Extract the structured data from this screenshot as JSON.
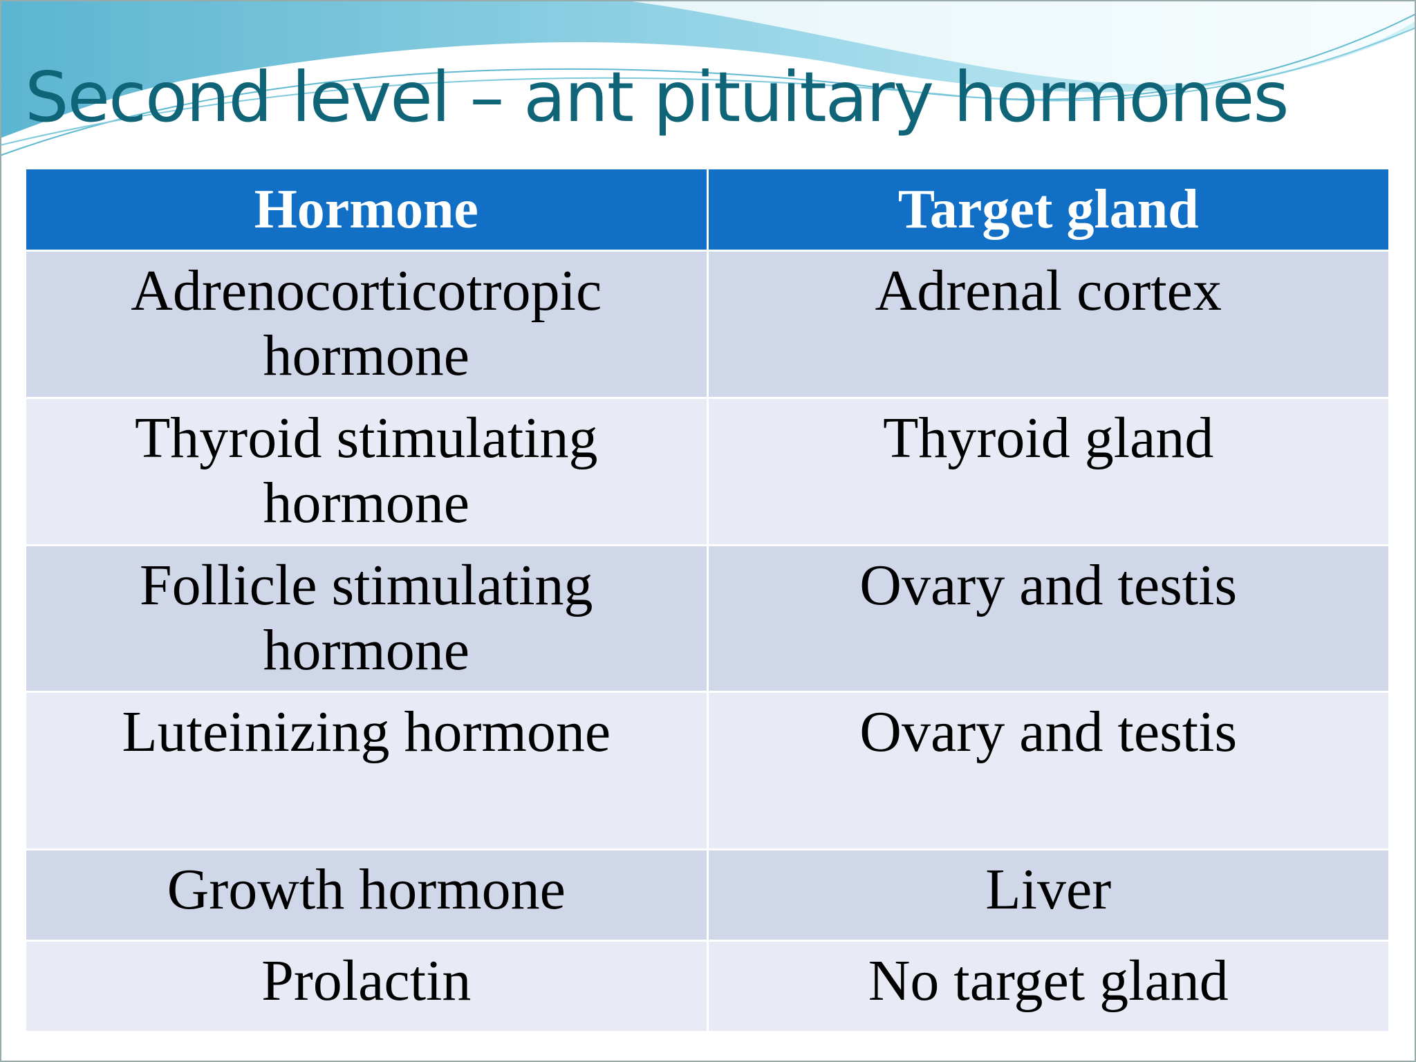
{
  "header": {
    "title": "Second level – ant pituitary hormones"
  },
  "table": {
    "columns": [
      "Hormone",
      "Target gland"
    ],
    "rows": [
      [
        "Adrenocorticotropic hormone",
        "Adrenal cortex"
      ],
      [
        "Thyroid stimulating hormone",
        "Thyroid gland"
      ],
      [
        "Follicle stimulating hormone",
        "Ovary and testis"
      ],
      [
        "Luteinizing hormone",
        "Ovary and testis"
      ],
      [
        "Growth hormone",
        "Liver"
      ],
      [
        "Prolactin",
        "No target gland"
      ]
    ]
  }
}
